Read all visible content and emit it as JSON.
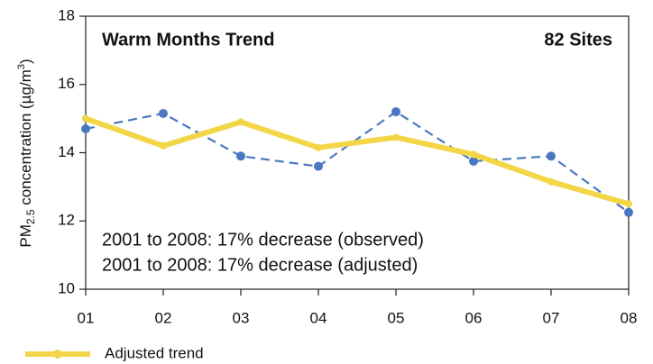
{
  "chart_data": {
    "type": "line",
    "title": "Warm Months Trend",
    "subtitle": "82 Sites",
    "y_label": [
      "PM",
      "2.5",
      " concentration (µg/m",
      "3",
      ")"
    ],
    "annotations": [
      "2001 to 2008: 17% decrease (observed)",
      "2001 to 2008: 17% decrease (adjusted)"
    ],
    "categories": [
      "01",
      "02",
      "03",
      "04",
      "05",
      "06",
      "07",
      "08"
    ],
    "series": [
      {
        "color": "#4a78c0",
        "dashed": true,
        "values": [
          14.7,
          15.15,
          13.9,
          13.6,
          15.2,
          13.75,
          13.9,
          12.25
        ]
      },
      {
        "name": "Adjusted trend",
        "color": "#f3d647",
        "values": [
          15.0,
          14.2,
          14.9,
          14.15,
          14.45,
          13.95,
          13.15,
          12.5
        ]
      }
    ],
    "ylim": [
      10,
      18
    ],
    "yticks": [
      10,
      12,
      14,
      16,
      18
    ]
  }
}
